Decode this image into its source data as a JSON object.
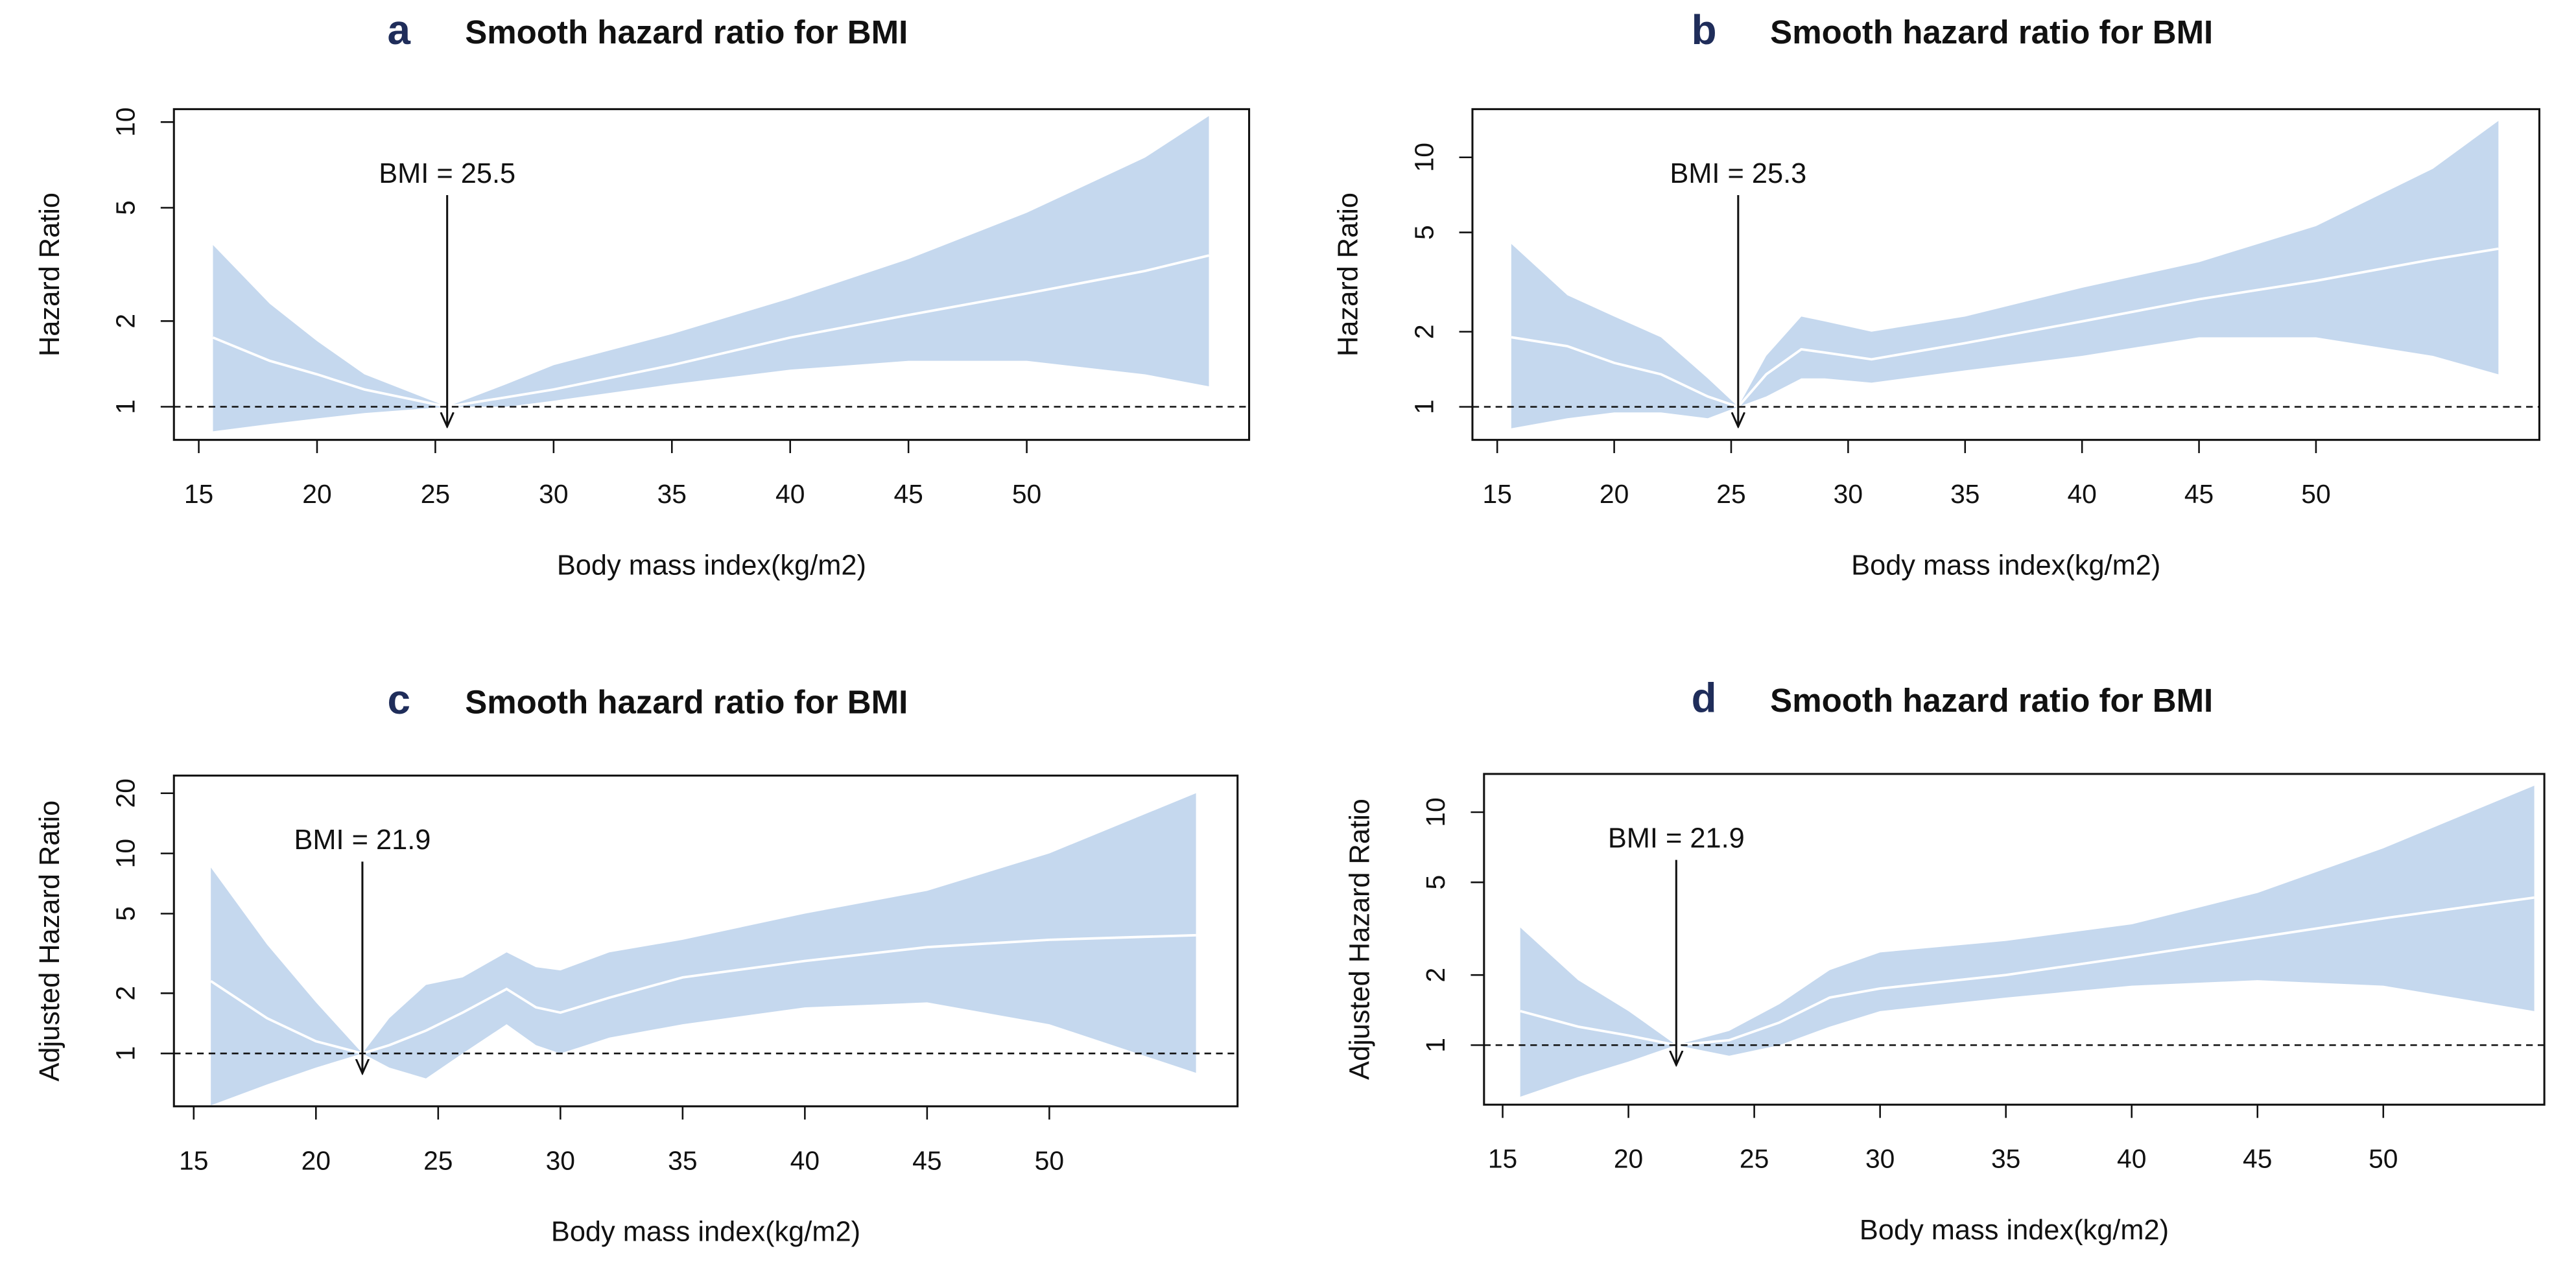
{
  "chart_data": [
    {
      "type": "band-line",
      "label": "a",
      "title": "Smooth hazard ratio for BMI",
      "xlabel": "Body mass index(kg/m2)",
      "ylabel": "Hazard Ratio",
      "log_y": true,
      "band_color": "#c5d8ee",
      "line_color": "#ffffff",
      "reference_line": 1,
      "annotation": {
        "text": "BMI = 25.5",
        "x": 25.5
      },
      "xlim": [
        13.95,
        59.4
      ],
      "ylim": [
        0.765,
        11.1
      ],
      "xticks": [
        15,
        20,
        25,
        30,
        35,
        40,
        45,
        50
      ],
      "yticks": [
        1,
        2,
        5,
        10
      ],
      "x": [
        15.6,
        18,
        20,
        22,
        25.5,
        28,
        30,
        35,
        40,
        45,
        50,
        55,
        57.7
      ],
      "upper": [
        3.7,
        2.3,
        1.7,
        1.3,
        1,
        1.2,
        1.4,
        1.8,
        2.4,
        3.3,
        4.8,
        7.5,
        10.5
      ],
      "lower": [
        0.82,
        0.87,
        0.91,
        0.95,
        1,
        1.0,
        1.05,
        1.2,
        1.35,
        1.45,
        1.45,
        1.3,
        1.18
      ],
      "values": [
        1.75,
        1.45,
        1.3,
        1.15,
        1,
        1.08,
        1.15,
        1.4,
        1.75,
        2.1,
        2.5,
        3.0,
        3.4
      ]
    },
    {
      "type": "band-line",
      "label": "b",
      "title": "Smooth hazard ratio for BMI",
      "xlabel": "Body mass index(kg/m2)",
      "ylabel": "Hazard Ratio",
      "log_y": true,
      "band_color": "#c5d8ee",
      "line_color": "#ffffff",
      "reference_line": 1,
      "annotation": {
        "text": "BMI = 25.3",
        "x": 25.3
      },
      "xlim": [
        13.94,
        59.55
      ],
      "ylim": [
        0.737,
        15.6
      ],
      "xticks": [
        15,
        20,
        25,
        30,
        35,
        40,
        45,
        50
      ],
      "yticks": [
        1,
        2,
        5,
        10
      ],
      "x": [
        15.6,
        18,
        20,
        22,
        24,
        25.3,
        26.5,
        28,
        29,
        31,
        35,
        40,
        45,
        50,
        55,
        57.8
      ],
      "upper": [
        4.5,
        2.8,
        2.3,
        1.9,
        1.3,
        1,
        1.6,
        2.3,
        2.2,
        2.0,
        2.3,
        3.0,
        3.8,
        5.3,
        9,
        14
      ],
      "lower": [
        0.82,
        0.9,
        0.95,
        0.95,
        0.9,
        1,
        1.1,
        1.3,
        1.3,
        1.25,
        1.4,
        1.6,
        1.9,
        1.9,
        1.6,
        1.35
      ],
      "values": [
        1.9,
        1.75,
        1.5,
        1.35,
        1.1,
        1,
        1.35,
        1.7,
        1.65,
        1.55,
        1.8,
        2.2,
        2.7,
        3.2,
        3.9,
        4.3
      ]
    },
    {
      "type": "band-line",
      "label": "c",
      "title": "Smooth hazard ratio for BMI",
      "xlabel": "Body mass index(kg/m2)",
      "ylabel": "Adjusted Hazard Ratio",
      "log_y": true,
      "band_color": "#c5d8ee",
      "line_color": "#ffffff",
      "reference_line": 1,
      "annotation": {
        "text": "BMI = 21.9",
        "x": 21.9
      },
      "xlim": [
        14.19,
        57.7
      ],
      "ylim": [
        0.544,
        24.5
      ],
      "xticks": [
        15,
        20,
        25,
        30,
        35,
        40,
        45,
        50
      ],
      "yticks": [
        1,
        2,
        5,
        10,
        20
      ],
      "x": [
        15.7,
        18,
        20,
        21.9,
        23,
        24.5,
        26,
        27.8,
        29,
        30,
        32,
        35,
        40,
        45,
        50,
        56
      ],
      "upper": [
        8.5,
        3.5,
        1.8,
        1,
        1.5,
        2.2,
        2.4,
        3.2,
        2.7,
        2.6,
        3.2,
        3.7,
        5,
        6.5,
        10,
        20
      ],
      "lower": [
        0.55,
        0.7,
        0.85,
        1,
        0.85,
        0.75,
        1.0,
        1.4,
        1.1,
        1.0,
        1.2,
        1.4,
        1.7,
        1.8,
        1.4,
        0.8
      ],
      "values": [
        2.3,
        1.5,
        1.15,
        1,
        1.1,
        1.3,
        1.6,
        2.1,
        1.7,
        1.6,
        1.9,
        2.4,
        2.9,
        3.4,
        3.7,
        3.9
      ]
    },
    {
      "type": "band-line",
      "label": "d",
      "title": "Smooth hazard ratio for BMI",
      "xlabel": "Body mass index(kg/m2)",
      "ylabel": "Adjusted Hazard Ratio",
      "log_y": true,
      "band_color": "#c5d8ee",
      "line_color": "#ffffff",
      "reference_line": 1,
      "annotation": {
        "text": "BMI = 21.9",
        "x": 21.9
      },
      "xlim": [
        14.26,
        56.4
      ],
      "ylim": [
        0.555,
        14.6
      ],
      "xticks": [
        15,
        20,
        25,
        30,
        35,
        40,
        45,
        50
      ],
      "yticks": [
        1,
        2,
        5,
        10
      ],
      "x": [
        15.7,
        18,
        20,
        21.9,
        24,
        26,
        28,
        30,
        35,
        40,
        45,
        50,
        56
      ],
      "upper": [
        3.2,
        1.9,
        1.4,
        1,
        1.15,
        1.5,
        2.1,
        2.5,
        2.8,
        3.3,
        4.5,
        7,
        13
      ],
      "lower": [
        0.6,
        0.73,
        0.85,
        1,
        0.9,
        1.0,
        1.2,
        1.4,
        1.6,
        1.8,
        1.9,
        1.8,
        1.4
      ],
      "values": [
        1.4,
        1.2,
        1.1,
        1,
        1.05,
        1.25,
        1.6,
        1.75,
        2.0,
        2.4,
        2.9,
        3.5,
        4.3
      ]
    }
  ]
}
